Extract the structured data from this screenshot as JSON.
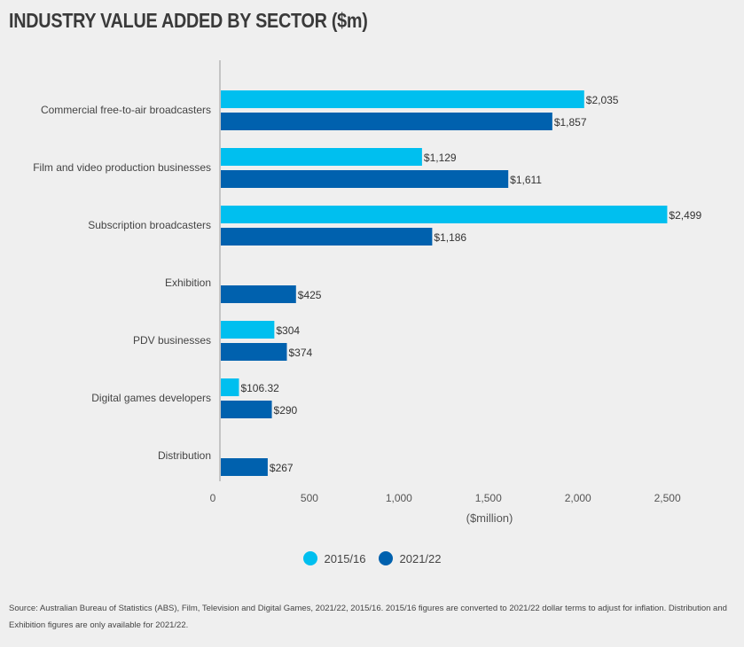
{
  "chart_data": {
    "type": "bar",
    "orientation": "horizontal",
    "title": "INDUSTRY VALUE ADDED BY SECTOR ($m)",
    "xlabel": "($million)",
    "ylabel": "",
    "xlim": [
      0,
      2700
    ],
    "xticks": [
      0,
      500,
      1000,
      1500,
      2000,
      2500
    ],
    "xtick_labels": [
      "0",
      "500",
      "1,000",
      "1,500",
      "2,000",
      "2,500"
    ],
    "categories": [
      "Commercial free-to-air broadcasters",
      "Film and video production businesses",
      "Subscription broadcasters",
      "Exhibition",
      "PDV businesses",
      "Digital games developers",
      "Distribution"
    ],
    "series": [
      {
        "name": "2015/16",
        "color": "#00bfef",
        "values": [
          2035,
          1129,
          2499,
          null,
          304,
          106.32,
          null
        ],
        "labels": [
          "$2,035",
          "$1,129",
          "$2,499",
          "",
          "$304",
          "$106.32",
          ""
        ]
      },
      {
        "name": "2021/22",
        "color": "#0061ae",
        "values": [
          1857,
          1611,
          1186,
          425,
          374,
          290,
          267
        ],
        "labels": [
          "$1,857",
          "$1,611",
          "$1,186",
          "$425",
          "$374",
          "$290",
          "$267"
        ]
      }
    ],
    "legend_position": "bottom-center",
    "grid": false
  },
  "source_note": "Source: Australian Bureau of Statistics (ABS), Film, Television and Digital Games, 2021/22, 2015/16. 2015/16 figures are converted to 2021/22 dollar terms to adjust for inflation. Distribution and Exhibition figures are only available for 2021/22."
}
